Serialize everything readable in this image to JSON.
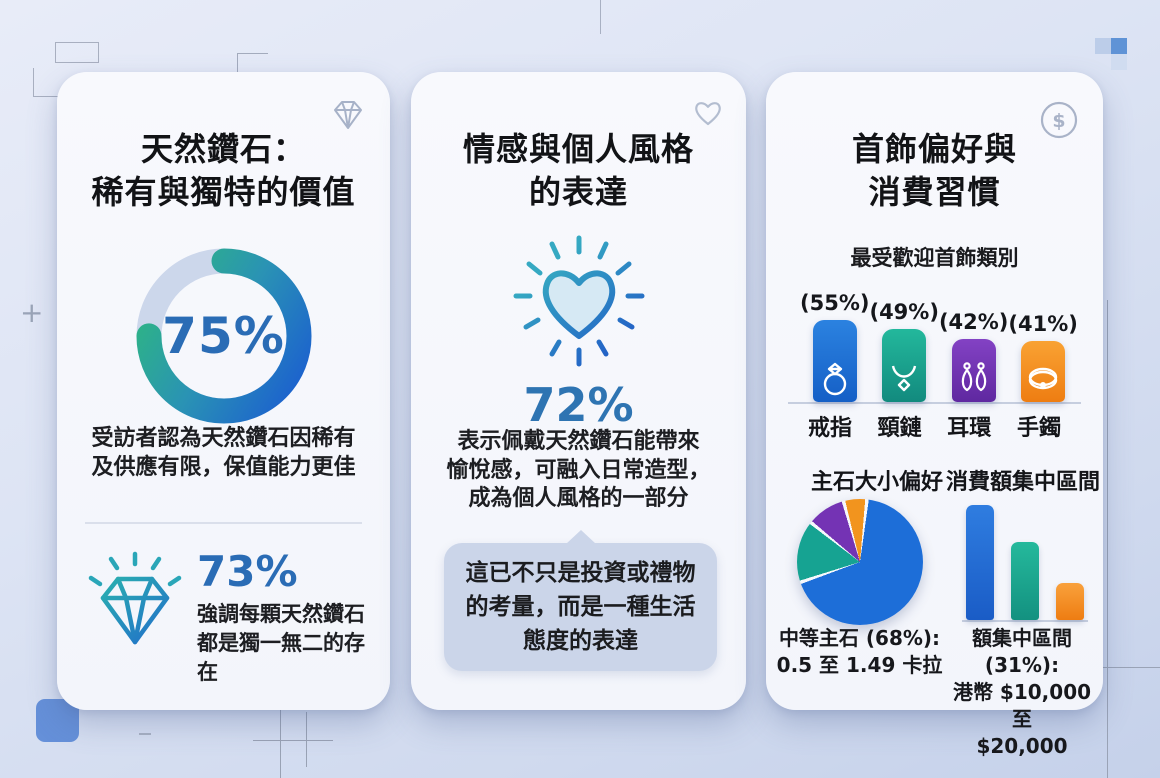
{
  "accent_colors": {
    "big_number_blue": "#2a6cb5",
    "donut_track": "#ccd7eb",
    "donut_gradient": [
      "#2eb781",
      "#1b5ed0"
    ],
    "callout_bg": "#cbd5e9",
    "card_bg": "#f6f7fb"
  },
  "cards": [
    {
      "id": "natural-diamond-value",
      "icon": "diamond-outline-icon",
      "title_lines": [
        "天然鑽石：",
        "稀有與獨特的價值"
      ],
      "donut": {
        "label": "75%",
        "value": 75
      },
      "donut_caption_lines": [
        "受訪者認為天然鑽石因稀有",
        "及供應有限，保值能力更佳"
      ],
      "secondary_stat": {
        "icon": "sparkling-diamond-icon",
        "value": "73%",
        "desc_lines": [
          "強調每顆天然鑽石",
          "都是獨一無二的存",
          "在"
        ]
      }
    },
    {
      "id": "emotion-personal-style",
      "icon": "heart-outline-icon",
      "title_lines": [
        "情感與個人風格",
        "的表達"
      ],
      "main_icon": "radiating-heart-icon",
      "stat": "72%",
      "desc_lines": [
        "表示佩戴天然鑽石能帶來",
        "愉悅感，可融入日常造型，",
        "成為個人風格的一部分"
      ],
      "callout_lines": [
        "這已不只是投資或禮物",
        "的考量，而是一種生活",
        "態度的表達"
      ]
    },
    {
      "id": "jewelry-preference-spending",
      "icon": "dollar-circle-icon",
      "title_lines": [
        "首飾偏好與",
        "消費習慣"
      ],
      "subtitle": "最受歡迎首飾類別",
      "pie_section": {
        "title": "主石大小偏好",
        "caption_lines": [
          "中等主石 (68%):",
          "0.5 至 1.49 卡拉"
        ]
      },
      "bar_section": {
        "title": "消費額集中區間",
        "caption_lines": [
          "額集中區間 (31%):",
          "港幣 $10,000 至",
          "$20,000"
        ]
      }
    }
  ],
  "chart_data": [
    {
      "type": "donut",
      "label": "75%",
      "value": 75,
      "max": 100,
      "caption": "受訪者認為天然鑽石因稀有及供應有限，保值能力更佳",
      "colors": [
        "#2eb781",
        "#1b5ed0"
      ],
      "track_color": "#ccd7eb"
    },
    {
      "type": "bar",
      "title": "最受歡迎首飾類別",
      "categories": [
        "戒指",
        "頸鏈",
        "耳環",
        "手鐲"
      ],
      "values": [
        55,
        49,
        42,
        41
      ],
      "value_labels": [
        "(55%)",
        "(49%)",
        "(42%)",
        "(41%)"
      ],
      "category_icons": [
        "ring-icon",
        "necklace-icon",
        "earrings-icon",
        "bangle-icon"
      ],
      "colors": [
        "#1e73d2",
        "#17a08d",
        "#7436b6",
        "#f28c1b"
      ],
      "ylim": [
        0,
        60
      ]
    },
    {
      "type": "pie",
      "title": "主石大小偏好",
      "segments": [
        {
          "name": "中等主石 0.5 至 1.49 卡拉",
          "value": 68
        },
        {
          "name": "",
          "value": 16
        },
        {
          "name": "",
          "value": 10
        },
        {
          "name": "",
          "value": 6
        }
      ],
      "colors": [
        "#1d6ed8",
        "#16a392",
        "#7433b4",
        "#f2941e"
      ],
      "note": "only the 68% slice is labeled; other slice values estimated from pixels"
    },
    {
      "type": "bar",
      "title": "消費額集中區間",
      "values": [
        31,
        21,
        10
      ],
      "labeled_value": "31%",
      "caption": "額集中區間 (31%): 港幣 $10,000 至 $20,000",
      "colors": [
        "#1e6fd4",
        "#18a390",
        "#f08a28"
      ],
      "note": "only the tallest bar (31%) is labeled; others estimated from pixels"
    }
  ]
}
